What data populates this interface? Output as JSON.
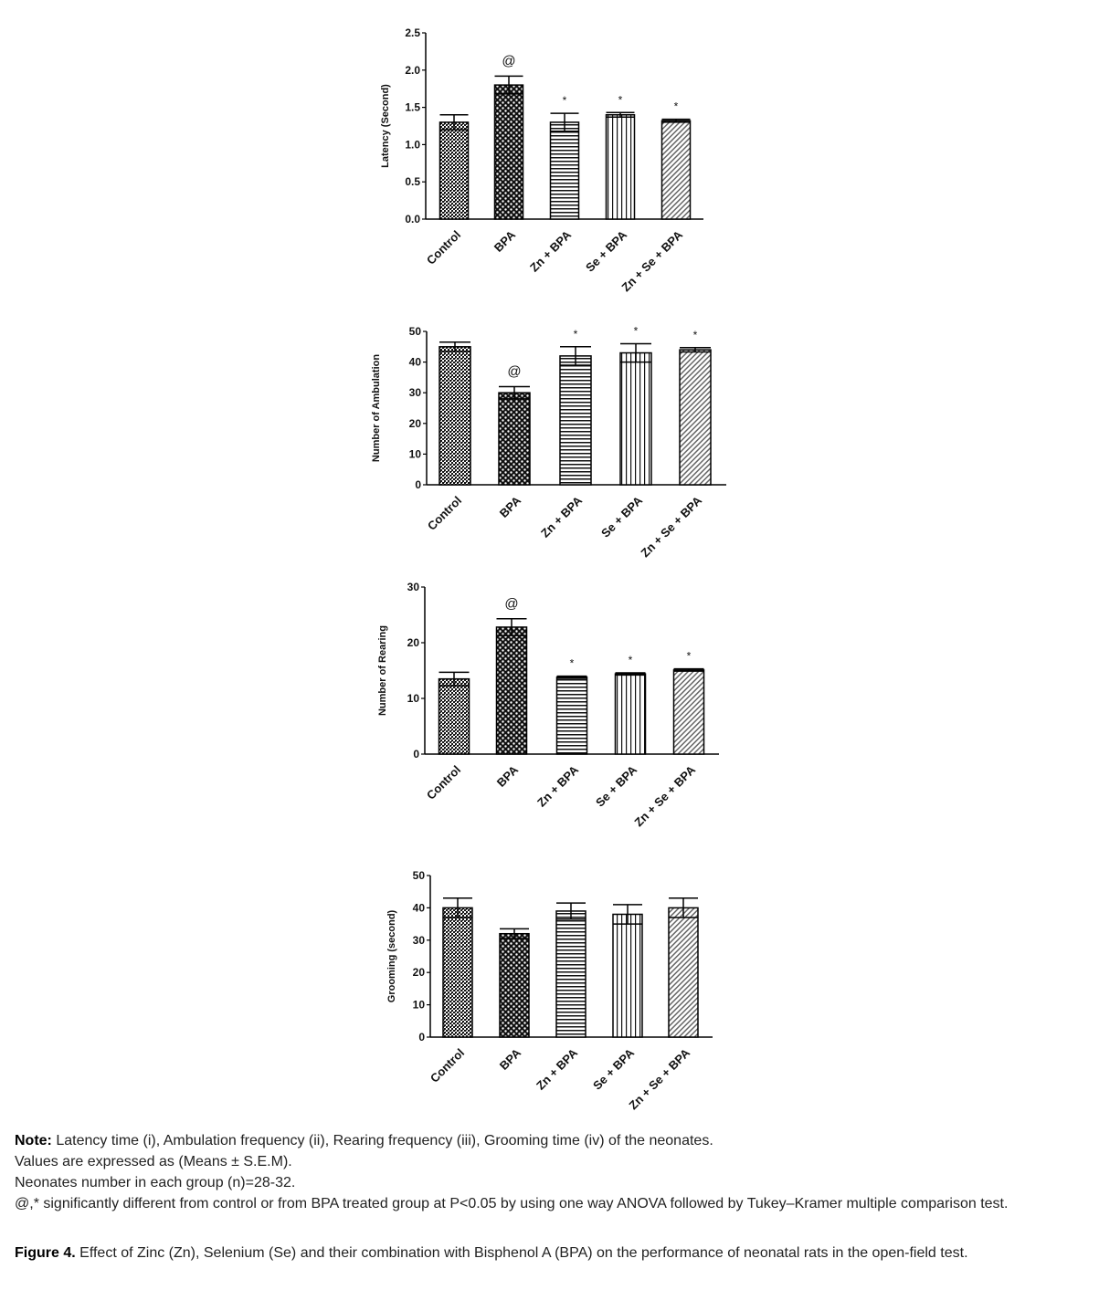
{
  "chart_data": [
    {
      "type": "bar",
      "ylabel": "Latency (Second)",
      "categories": [
        "Control",
        "BPA",
        "Zn + BPA",
        "Se + BPA",
        "Zn + Se + BPA"
      ],
      "values": [
        1.3,
        1.8,
        1.3,
        1.4,
        1.32
      ],
      "errors": [
        0.1,
        0.12,
        0.12,
        0.03,
        0.02
      ],
      "annotations": [
        null,
        "@",
        "*",
        "*",
        "*"
      ],
      "ylim": [
        0,
        2.5
      ],
      "yticks": [
        {
          "value": 0,
          "label": "0.0"
        },
        0.5,
        {
          "value": 1,
          "label": "1.0"
        },
        1.5,
        {
          "value": 2,
          "label": "2.0"
        },
        2.5
      ]
    },
    {
      "type": "bar",
      "ylabel": "Number of Ambulation",
      "categories": [
        "Control",
        "BPA",
        "Zn + BPA",
        "Se + BPA",
        "Zn + Se + BPA"
      ],
      "values": [
        45,
        30,
        42,
        43,
        44
      ],
      "errors": [
        1.5,
        2,
        3,
        3,
        0.7
      ],
      "annotations": [
        null,
        "@",
        "*",
        "*",
        "*"
      ],
      "ylim": [
        0,
        50
      ],
      "yticks": [
        0,
        10,
        20,
        30,
        40,
        50
      ]
    },
    {
      "type": "bar",
      "ylabel": "Number of Rearing",
      "categories": [
        "Control",
        "BPA",
        "Zn + BPA",
        "Se + BPA",
        "Zn + Se + BPA"
      ],
      "values": [
        13.5,
        22.8,
        13.8,
        14.4,
        15.1
      ],
      "errors": [
        1.2,
        1.5,
        0.2,
        0.2,
        0.2
      ],
      "annotations": [
        null,
        "@",
        "*",
        "*",
        "*"
      ],
      "ylim": [
        0,
        30
      ],
      "yticks": [
        0,
        10,
        20,
        30
      ]
    },
    {
      "type": "bar",
      "ylabel": "Grooming (second)",
      "categories": [
        "Control",
        "BPA",
        "Zn + BPA",
        "Se + BPA",
        "Zn + Se + BPA"
      ],
      "values": [
        40,
        32,
        39,
        38,
        40
      ],
      "errors": [
        3,
        1.5,
        2.5,
        3,
        3
      ],
      "ylim": [
        0,
        50
      ],
      "yticks": [
        0,
        10,
        20,
        30,
        40,
        50
      ]
    }
  ],
  "note": {
    "label": "Note:",
    "lines": [
      "Latency time (i), Ambulation frequency (ii), Rearing frequency (iii), Grooming time (iv) of the neonates.",
      "Values are expressed as (Means ± S.E.M).",
      "Neonates number in each group (n)=28-32.",
      "@,* significantly different from control or from BPA treated group at P<0.05 by using one way ANOVA followed by Tukey–Kramer multiple comparison test."
    ]
  },
  "caption": {
    "label": "Figure 4.",
    "text": "Effect of Zinc (Zn), Selenium (Se) and their combination with Bisphenol A (BPA) on the performance of neonatal rats in the open-field test."
  }
}
